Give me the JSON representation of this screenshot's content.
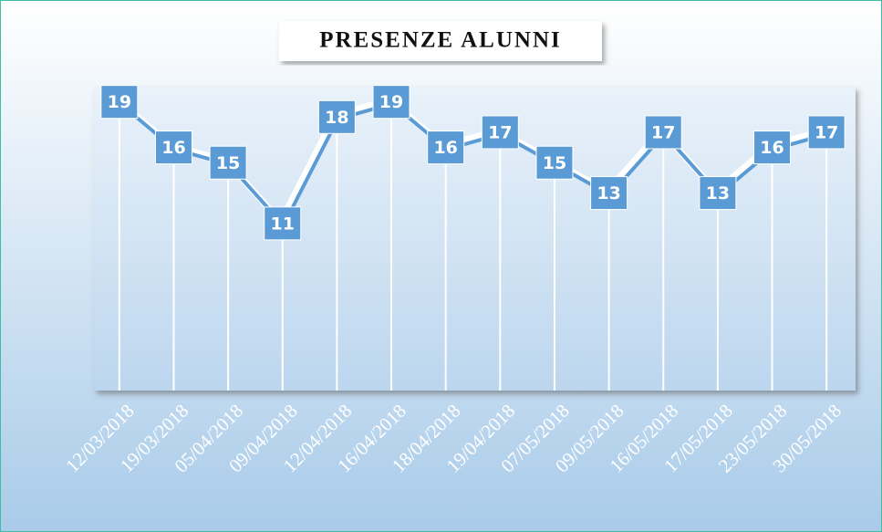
{
  "chart_data": {
    "type": "line",
    "title": "PRESENZE ALUNNI",
    "categories": [
      "12/03/2018",
      "19/03/2018",
      "05/04/2018",
      "09/04/2018",
      "12/04/2018",
      "16/04/2018",
      "18/04/2018",
      "19/04/2018",
      "07/05/2018",
      "09/05/2018",
      "16/05/2018",
      "17/05/2018",
      "23/05/2018",
      "30/05/2018"
    ],
    "values": [
      19,
      16,
      15,
      11,
      18,
      19,
      16,
      17,
      15,
      13,
      17,
      13,
      16,
      17
    ],
    "color": "#5b9bd5",
    "ylim": [
      0,
      20
    ]
  }
}
